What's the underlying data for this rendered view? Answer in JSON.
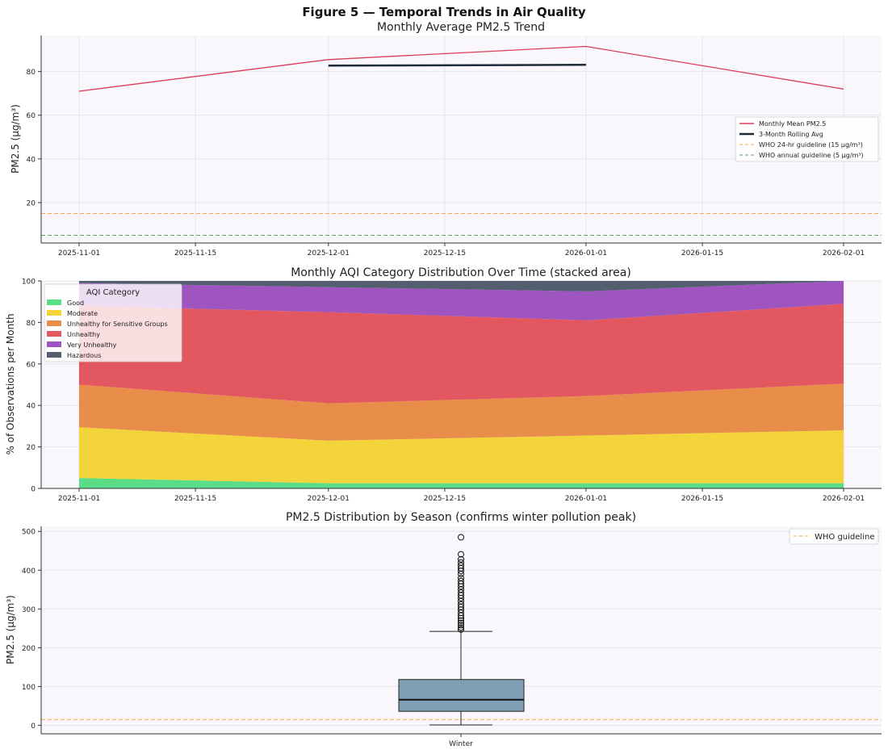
{
  "figure_title": "Figure 5 — Temporal Trends in Air Quality",
  "colors": {
    "plot_bg": "#f9f7fb",
    "grid": "#e2dfe6",
    "monthly_mean": "#dc3c5a",
    "rolling_avg": "#1c2a3a",
    "who_24h": "#f5a94a",
    "who_annual": "#5aa852",
    "box_fill": "#7f9fb5"
  },
  "chart_data": [
    {
      "type": "line",
      "title": "Monthly Average PM2.5 Trend",
      "xlabel": "",
      "ylabel": "PM2.5 (µg/m³)",
      "x": [
        "2025-11-01",
        "2025-12-01",
        "2026-01-01",
        "2026-02-01"
      ],
      "x_ticks": [
        "2025-11-01",
        "2025-11-15",
        "2025-12-01",
        "2025-12-15",
        "2026-01-01",
        "2026-01-15",
        "2026-02-01"
      ],
      "y_ticks": [
        20,
        40,
        60,
        80
      ],
      "ylim": [
        1.5,
        96.5
      ],
      "grid": true,
      "legend_position": "center-right",
      "series": [
        {
          "name": "Monthly Mean PM2.5",
          "x": [
            "2025-11-01",
            "2025-12-01",
            "2026-01-01",
            "2026-02-01"
          ],
          "values": [
            71,
            85.5,
            91.5,
            72
          ],
          "color": "#dc3c5a",
          "style": "solid"
        },
        {
          "name": "3-Month Rolling Avg",
          "x": [
            "2025-12-01",
            "2026-01-01"
          ],
          "values": [
            82.7,
            83.1
          ],
          "color": "#1c2a3a",
          "style": "bold"
        }
      ],
      "hlines": [
        {
          "name": "WHO 24-hr guideline (15 µg/m³)",
          "value": 15,
          "color": "#f5a94a"
        },
        {
          "name": "WHO annual guideline (5 µg/m³)",
          "value": 5,
          "color": "#5aa852"
        }
      ]
    },
    {
      "type": "area",
      "title": "Monthly AQI Category Distribution Over Time (stacked area)",
      "xlabel": "",
      "ylabel": "% of Observations per Month",
      "x": [
        "2025-11-01",
        "2025-12-01",
        "2026-01-01",
        "2026-02-01"
      ],
      "x_ticks": [
        "2025-11-01",
        "2025-11-15",
        "2025-12-01",
        "2025-12-15",
        "2026-01-01",
        "2026-01-15",
        "2026-02-01"
      ],
      "y_ticks": [
        0,
        20,
        40,
        60,
        80,
        100
      ],
      "ylim": [
        0,
        100
      ],
      "grid": true,
      "legend_title": "AQI Category",
      "legend_position": "top-left",
      "series": [
        {
          "name": "Good",
          "values": [
            5,
            2.5,
            2.5,
            2.5
          ],
          "color": "#47d97a"
        },
        {
          "name": "Moderate",
          "values": [
            24.5,
            20.5,
            23,
            25.5
          ],
          "color": "#f2cf26"
        },
        {
          "name": "Unhealthy for Sensitive Groups",
          "values": [
            20.5,
            18,
            19,
            22.5
          ],
          "color": "#e58236"
        },
        {
          "name": "Unhealthy",
          "values": [
            38,
            44,
            36.5,
            38.5
          ],
          "color": "#e04550"
        },
        {
          "name": "Very Unhealthy",
          "values": [
            11,
            12,
            14,
            11
          ],
          "color": "#9442b8"
        },
        {
          "name": "Hazardous",
          "values": [
            1,
            3,
            5,
            0
          ],
          "color": "#404c5e"
        }
      ]
    },
    {
      "type": "box",
      "title": "PM2.5 Distribution by Season (confirms winter pollution peak)",
      "xlabel": "",
      "ylabel": "PM2.5 (µg/m³)",
      "categories": [
        "Winter"
      ],
      "y_ticks": [
        0,
        100,
        200,
        300,
        400,
        500
      ],
      "ylim": [
        -22,
        513
      ],
      "grid": true,
      "legend_position": "top-right",
      "boxes": [
        {
          "category": "Winter",
          "whisker_low": 1,
          "q1": 36,
          "median": 66,
          "q3": 118,
          "whisker_high": 242,
          "outliers": [
            485,
            441,
            428,
            420,
            412,
            405,
            398,
            390,
            380,
            372,
            365,
            358,
            350,
            342,
            335,
            328,
            320,
            312,
            305,
            298,
            290,
            283,
            276,
            270,
            264,
            258,
            252,
            247
          ]
        }
      ],
      "hlines": [
        {
          "name": "WHO guideline",
          "value": 15,
          "color": "#f5a94a"
        }
      ]
    }
  ]
}
